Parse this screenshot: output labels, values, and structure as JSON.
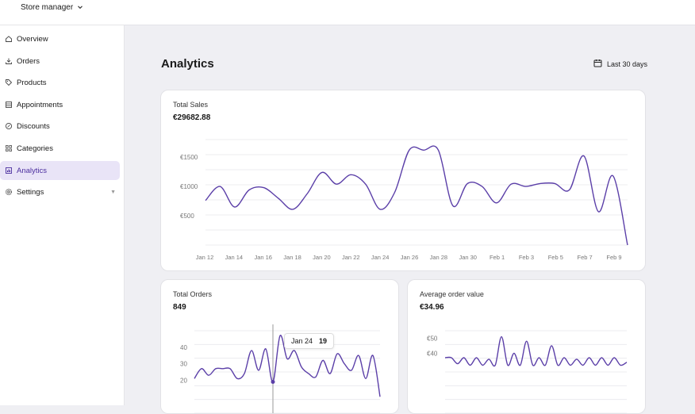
{
  "header": {
    "store_label": "Store manager"
  },
  "sidebar": {
    "items": [
      {
        "label": "Overview",
        "icon": "home-icon"
      },
      {
        "label": "Orders",
        "icon": "download-icon"
      },
      {
        "label": "Products",
        "icon": "tag-icon"
      },
      {
        "label": "Appointments",
        "icon": "calendar-grid-icon"
      },
      {
        "label": "Discounts",
        "icon": "discount-icon"
      },
      {
        "label": "Categories",
        "icon": "grid-icon"
      },
      {
        "label": "Analytics",
        "icon": "analytics-icon",
        "active": true
      },
      {
        "label": "Settings",
        "icon": "gear-icon",
        "expandable": true
      }
    ]
  },
  "main": {
    "title": "Analytics",
    "range_label": "Last 30 days"
  },
  "colors": {
    "accent": "#5b3fa8",
    "active_bg": "#e9e4f7",
    "line": "#5b3fa8"
  },
  "tooltip": {
    "date": "Jan 24",
    "value": "19"
  },
  "chart_data": [
    {
      "type": "line",
      "title": "Total Sales",
      "total": "€29682.88",
      "y_ticks": [
        "€500",
        "€1000",
        "€1500"
      ],
      "ylim": [
        0,
        1800
      ],
      "x_tick_labels": [
        "Jan 12",
        "Jan 14",
        "Jan 16",
        "Jan 18",
        "Jan 20",
        "Jan 22",
        "Jan 24",
        "Jan 26",
        "Jan 28",
        "Jan 30",
        "Feb 1",
        "Feb 3",
        "Feb 5",
        "Feb 7",
        "Feb 9"
      ],
      "x_start": "Jan 12",
      "values": [
        760,
        1000,
        650,
        940,
        980,
        800,
        610,
        880,
        1240,
        1040,
        1200,
        1040,
        610,
        900,
        1620,
        1620,
        1620,
        670,
        1050,
        1000,
        720,
        1040,
        1000,
        1050,
        1050,
        940,
        1520,
        570,
        1180,
        0
      ]
    },
    {
      "type": "line",
      "title": "Total Orders",
      "total": "849",
      "y_ticks": [
        "20",
        "30",
        "40"
      ],
      "ylim": [
        0,
        50
      ],
      "x_start": "Jan 12",
      "values": [
        21,
        27,
        23,
        27,
        27,
        27,
        21,
        24,
        38,
        26,
        39,
        19,
        47,
        33,
        38,
        28,
        24,
        22,
        32,
        24,
        36,
        30,
        26,
        35,
        21,
        35,
        10
      ]
    },
    {
      "type": "line",
      "title": "Average order value",
      "total": "€34.96",
      "y_ticks": [
        "€40",
        "€50"
      ],
      "ylim": [
        0,
        55
      ],
      "x_start": "Jan 12",
      "values": [
        37,
        37,
        33,
        37,
        32,
        37,
        32,
        36,
        32,
        51,
        32,
        40,
        32,
        48,
        32,
        37,
        32,
        45,
        32,
        37,
        32,
        36,
        32,
        37,
        32,
        37,
        32,
        37,
        32,
        34
      ]
    }
  ]
}
